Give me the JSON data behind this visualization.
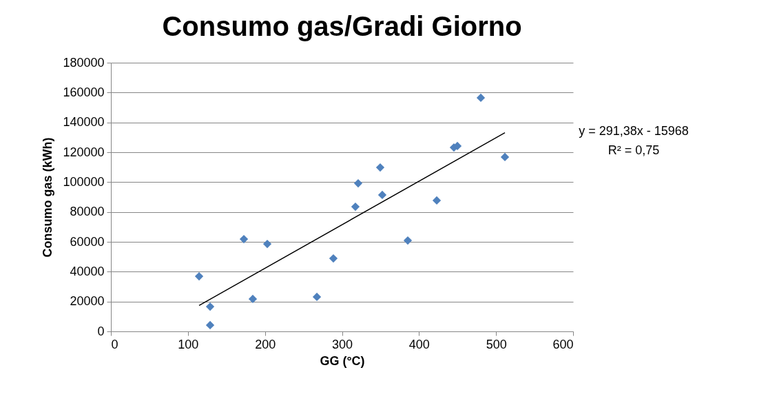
{
  "chart_data": {
    "type": "scatter",
    "title": "Consumo gas/Gradi Giorno",
    "xlabel": "GG (°C)",
    "ylabel": "Consumo gas (kWh)",
    "xlim": [
      0,
      600
    ],
    "xticks": [
      0,
      100,
      200,
      300,
      400,
      500,
      600
    ],
    "ylim": [
      0,
      180000
    ],
    "yticks": [
      0,
      20000,
      40000,
      60000,
      80000,
      100000,
      120000,
      140000,
      160000,
      180000
    ],
    "grid": "y",
    "marker": "diamond",
    "series": [
      {
        "color": "#4f81bd",
        "x": [
          114.5,
          128.8,
          128.8,
          172.6,
          184.2,
          203,
          267.4,
          288.8,
          317.4,
          321,
          349.6,
          352.3,
          385.4,
          423,
          445.3,
          449.8,
          480.2,
          511.5
        ],
        "values": [
          36900,
          16600,
          4200,
          61800,
          21700,
          58600,
          23100,
          48900,
          83500,
          99200,
          109800,
          91400,
          60900,
          87700,
          123200,
          124200,
          156500,
          116800
        ]
      },
      {
        "type": "line",
        "color": "#000000",
        "line_style": "solid",
        "marker": "none",
        "x": [
          114.5,
          511.5
        ],
        "values": [
          17400,
          133100
        ]
      }
    ],
    "annotations": [
      "y = 291,38x - 15968",
      "R² = 0,75"
    ]
  }
}
